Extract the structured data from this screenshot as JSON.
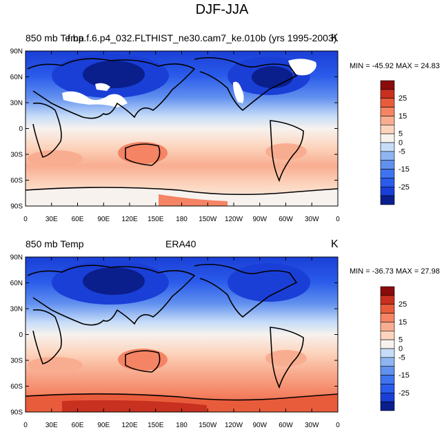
{
  "figure": {
    "title": "DJF-JJA"
  },
  "panels": [
    {
      "left_label": "850 mb Temp",
      "center_label": "f.ba.f.6.p4_032.FLTHIST_ne30.cam7_ke.010b (yrs 1995-2003)",
      "right_label": "K",
      "stats": "MIN = -45.92 MAX =  24.83",
      "min": -45.92,
      "max": 24.83
    },
    {
      "left_label": "850 mb Temp",
      "center_label": "ERA40",
      "right_label": "K",
      "stats": "MIN = -36.73 MAX = 27.98",
      "min": -36.73,
      "max": 27.98
    }
  ],
  "axes": {
    "lat_ticks": [
      "90N",
      "60N",
      "30N",
      "0",
      "30S",
      "60S",
      "90S"
    ],
    "lon_ticks": [
      "0",
      "30E",
      "60E",
      "90E",
      "120E",
      "150E",
      "180",
      "150W",
      "120W",
      "90W",
      "60W",
      "30W",
      "0"
    ]
  },
  "colorbar": {
    "tick_labels": [
      "25",
      "15",
      "5",
      "-5",
      "-15",
      "-25"
    ],
    "mid_labels": [
      "0"
    ],
    "levels": [
      -30,
      -25,
      -20,
      -15,
      -10,
      -5,
      0,
      5,
      10,
      15,
      20,
      25,
      30
    ],
    "colors": [
      "#0a1e8c",
      "#1a3fd6",
      "#2a5bea",
      "#3f74ef",
      "#6190ef",
      "#8fb4f2",
      "#c6dcf8",
      "#f7f2ee",
      "#fcd4bd",
      "#f9ad90",
      "#f48464",
      "#e85c3c",
      "#c8301f",
      "#8a0b0b"
    ]
  }
}
